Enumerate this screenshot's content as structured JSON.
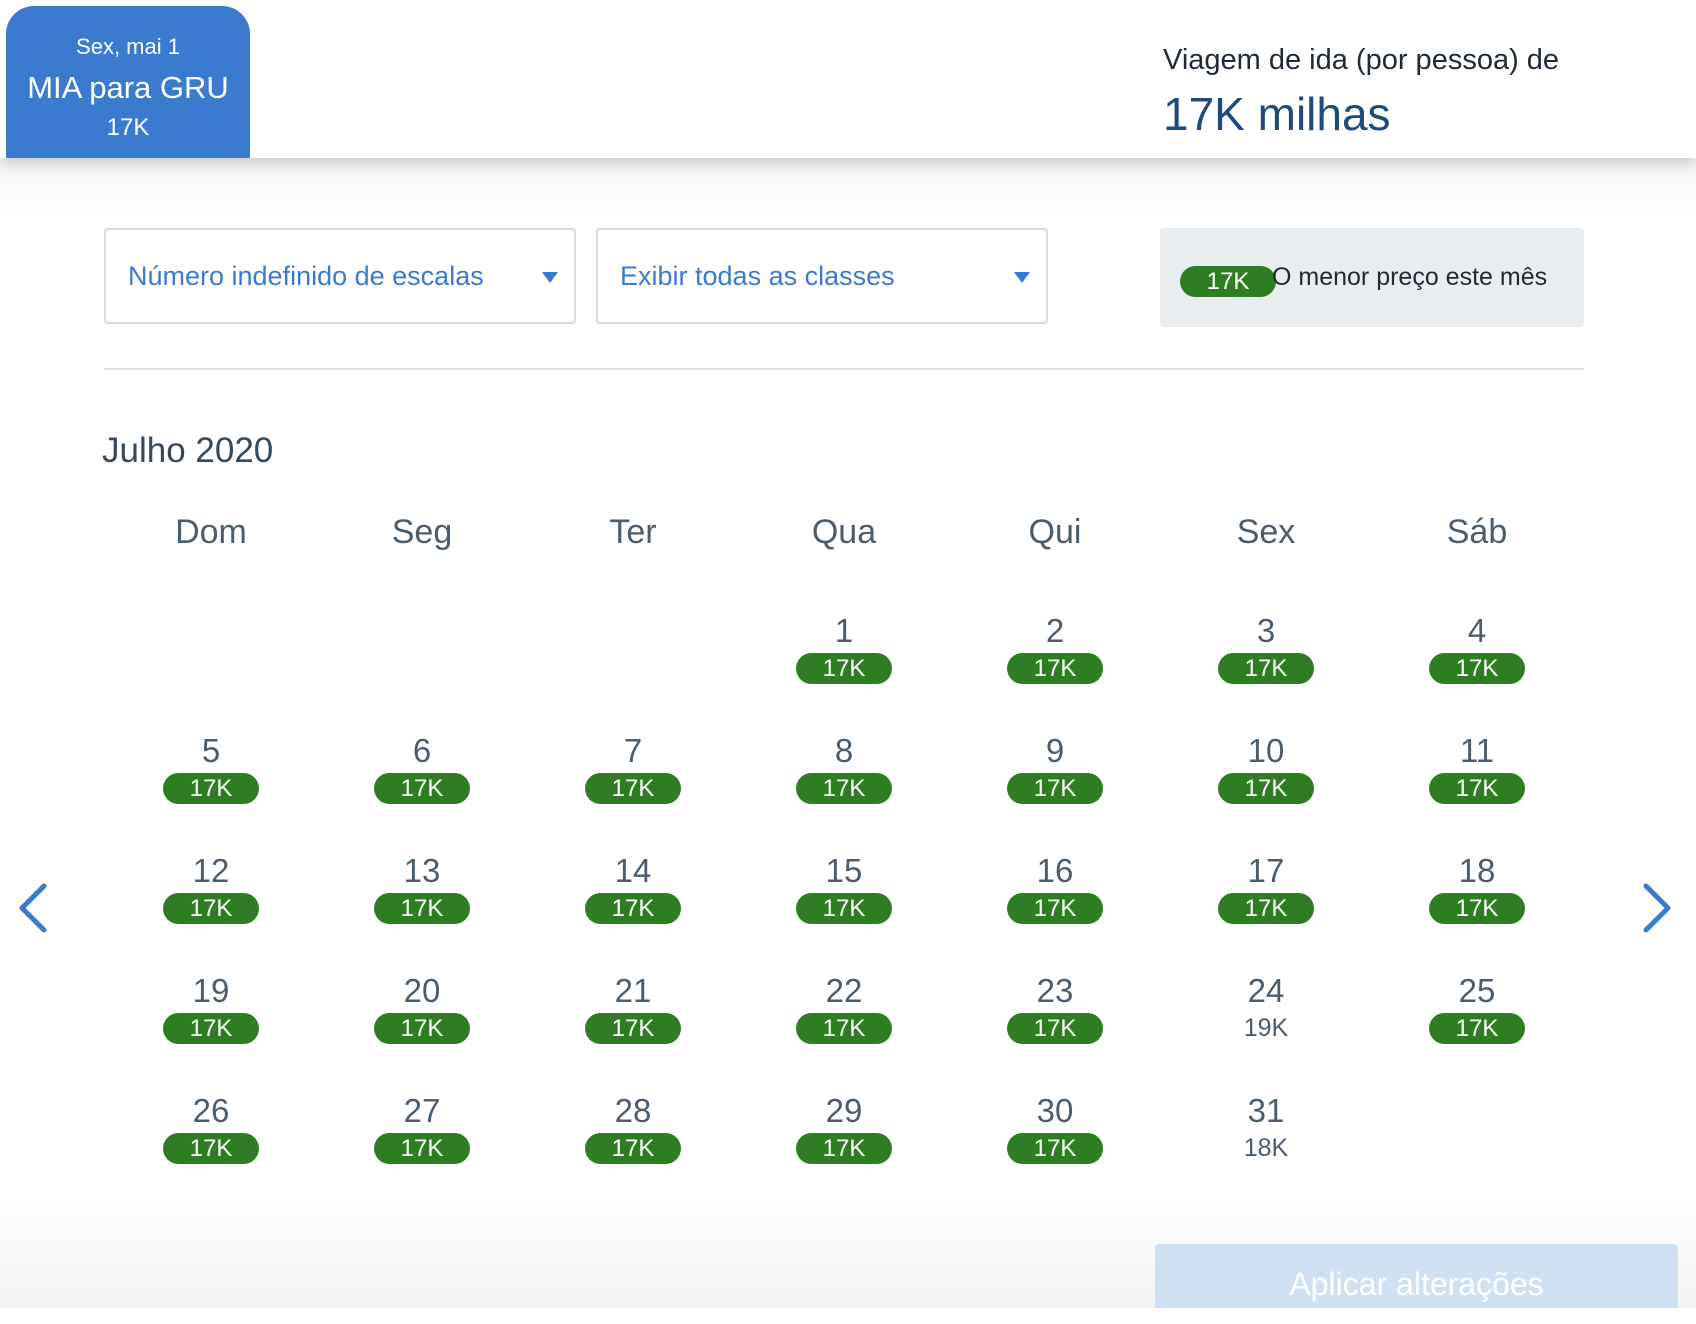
{
  "trip_tab": {
    "date": "Sex, mai 1",
    "route": "MIA para GRU",
    "miles": "17K"
  },
  "fare_summary": {
    "label": "Viagem de ida (por pessoa) de",
    "amount": "17K milhas"
  },
  "filters": {
    "stops": "Número indefinido de escalas",
    "classes": "Exibir todas as classes"
  },
  "legend": {
    "pill": "17K",
    "text": "O menor preço este mês"
  },
  "colors": {
    "accent": "#3a7bd0",
    "lowest_price": "#2e7d22",
    "legend_bg": "#e9edf0",
    "apply_disabled": "#cfe0f3"
  },
  "calendar": {
    "month": "Julho 2020",
    "weekdays": [
      "Dom",
      "Seg",
      "Ter",
      "Qua",
      "Qui",
      "Sex",
      "Sáb"
    ],
    "first_weekday": 3,
    "days": [
      {
        "day": "1",
        "price": "17K",
        "lowest": true
      },
      {
        "day": "2",
        "price": "17K",
        "lowest": true
      },
      {
        "day": "3",
        "price": "17K",
        "lowest": true
      },
      {
        "day": "4",
        "price": "17K",
        "lowest": true
      },
      {
        "day": "5",
        "price": "17K",
        "lowest": true
      },
      {
        "day": "6",
        "price": "17K",
        "lowest": true
      },
      {
        "day": "7",
        "price": "17K",
        "lowest": true
      },
      {
        "day": "8",
        "price": "17K",
        "lowest": true
      },
      {
        "day": "9",
        "price": "17K",
        "lowest": true
      },
      {
        "day": "10",
        "price": "17K",
        "lowest": true
      },
      {
        "day": "11",
        "price": "17K",
        "lowest": true
      },
      {
        "day": "12",
        "price": "17K",
        "lowest": true
      },
      {
        "day": "13",
        "price": "17K",
        "lowest": true
      },
      {
        "day": "14",
        "price": "17K",
        "lowest": true
      },
      {
        "day": "15",
        "price": "17K",
        "lowest": true
      },
      {
        "day": "16",
        "price": "17K",
        "lowest": true
      },
      {
        "day": "17",
        "price": "17K",
        "lowest": true
      },
      {
        "day": "18",
        "price": "17K",
        "lowest": true
      },
      {
        "day": "19",
        "price": "17K",
        "lowest": true
      },
      {
        "day": "20",
        "price": "17K",
        "lowest": true
      },
      {
        "day": "21",
        "price": "17K",
        "lowest": true
      },
      {
        "day": "22",
        "price": "17K",
        "lowest": true
      },
      {
        "day": "23",
        "price": "17K",
        "lowest": true
      },
      {
        "day": "24",
        "price": "19K",
        "lowest": false
      },
      {
        "day": "25",
        "price": "17K",
        "lowest": true
      },
      {
        "day": "26",
        "price": "17K",
        "lowest": true
      },
      {
        "day": "27",
        "price": "17K",
        "lowest": true
      },
      {
        "day": "28",
        "price": "17K",
        "lowest": true
      },
      {
        "day": "29",
        "price": "17K",
        "lowest": true
      },
      {
        "day": "30",
        "price": "17K",
        "lowest": true
      },
      {
        "day": "31",
        "price": "18K",
        "lowest": false
      }
    ]
  },
  "nav": {
    "prev_icon": "chevron-left-icon",
    "next_icon": "chevron-right-icon"
  },
  "apply_button": "Aplicar alterações"
}
